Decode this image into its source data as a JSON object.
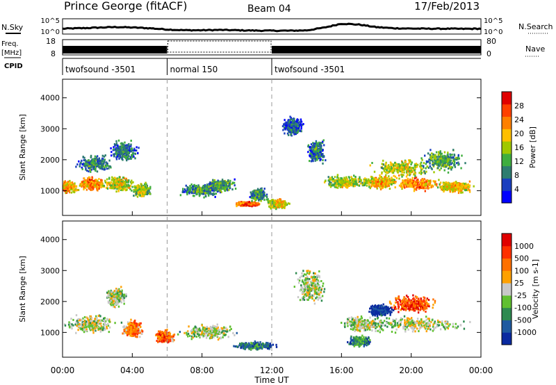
{
  "header": {
    "station": "Prince George (fitACF)",
    "beam": "Beam 04",
    "date": "17/Feb/2013"
  },
  "left_labels": {
    "nsky": "N.Sky",
    "freq": "Freq.",
    "freq_unit": "[MHz]",
    "cpid": "CPID"
  },
  "right_labels": {
    "nsearch": "N.Search",
    "nave": "Nave"
  },
  "chart_data": [
    {
      "type": "line",
      "name": "noise",
      "ylim_ticks": [
        "10^5",
        "10^0"
      ],
      "right_ticks": [
        "10^5",
        "10^0"
      ],
      "series": [
        {
          "x": [
            0,
            1,
            2,
            3,
            4,
            5,
            6,
            7,
            8,
            9,
            10,
            11,
            12,
            13,
            14,
            15,
            16,
            17,
            18,
            19,
            20,
            21,
            22,
            23,
            24
          ],
          "values": [
            0.35,
            0.38,
            0.42,
            0.46,
            0.43,
            0.38,
            0.3,
            0.25,
            0.25,
            0.27,
            0.25,
            0.23,
            0.22,
            0.22,
            0.24,
            0.42,
            0.68,
            0.62,
            0.45,
            0.38,
            0.36,
            0.35,
            0.35,
            0.34,
            0.35
          ]
        }
      ]
    },
    {
      "type": "bar",
      "name": "frequency",
      "left_ticks": [
        "18",
        "8"
      ],
      "right_ticks": [
        "80",
        "0"
      ],
      "segments": [
        {
          "start": 0,
          "end": 6,
          "style": "filled"
        },
        {
          "start": 6,
          "end": 12,
          "style": "dotted"
        },
        {
          "start": 12,
          "end": 24,
          "style": "filled"
        }
      ]
    },
    {
      "type": "table",
      "name": "cpid",
      "segments": [
        {
          "start": 0,
          "end": 6,
          "label": "twofsound -3501"
        },
        {
          "start": 6,
          "end": 12,
          "label": "normal 150"
        },
        {
          "start": 12,
          "end": 24,
          "label": "twofsound -3501"
        }
      ]
    },
    {
      "type": "heatmap",
      "name": "power",
      "ylabel": "Slant Range [km]",
      "yticks": [
        1000,
        2000,
        3000,
        4000
      ],
      "ylim": [
        200,
        4600
      ],
      "colorbar_label": "Power [dB]",
      "colorbar_ticks": [
        "28",
        "24",
        "20",
        "16",
        "12",
        "8",
        "4"
      ],
      "colors": [
        "#0000ff",
        "#1a3fbf",
        "#2e7d70",
        "#3fae3f",
        "#a0c800",
        "#ffbf00",
        "#ff8000",
        "#ff4000",
        "#e00000"
      ],
      "blobs": [
        {
          "t": 0.2,
          "r": 1150,
          "dt": 0.8,
          "dr": 220,
          "v": 0.7
        },
        {
          "t": 1.6,
          "r": 1250,
          "dt": 0.9,
          "dr": 250,
          "v": 0.75
        },
        {
          "t": 3.2,
          "r": 1250,
          "dt": 1.0,
          "dr": 300,
          "v": 0.6
        },
        {
          "t": 4.5,
          "r": 1050,
          "dt": 0.6,
          "dr": 250,
          "v": 0.55
        },
        {
          "t": 1.8,
          "r": 1900,
          "dt": 1.2,
          "dr": 300,
          "v": 0.35
        },
        {
          "t": 3.5,
          "r": 2300,
          "dt": 1.0,
          "dr": 400,
          "v": 0.3
        },
        {
          "t": 7.8,
          "r": 1050,
          "dt": 1.4,
          "dr": 250,
          "v": 0.35
        },
        {
          "t": 9.0,
          "r": 1200,
          "dt": 1.0,
          "dr": 250,
          "v": 0.4
        },
        {
          "t": 10.6,
          "r": 600,
          "dt": 0.9,
          "dr": 90,
          "v": 0.85
        },
        {
          "t": 12.3,
          "r": 600,
          "dt": 0.8,
          "dr": 180,
          "v": 0.6
        },
        {
          "t": 11.2,
          "r": 900,
          "dt": 0.6,
          "dr": 250,
          "v": 0.35
        },
        {
          "t": 13.2,
          "r": 3100,
          "dt": 0.8,
          "dr": 350,
          "v": 0.25
        },
        {
          "t": 14.5,
          "r": 2300,
          "dt": 0.6,
          "dr": 450,
          "v": 0.3
        },
        {
          "t": 16.2,
          "r": 1300,
          "dt": 1.6,
          "dr": 250,
          "v": 0.55
        },
        {
          "t": 18.2,
          "r": 1300,
          "dt": 1.2,
          "dr": 250,
          "v": 0.65
        },
        {
          "t": 20.3,
          "r": 1250,
          "dt": 1.6,
          "dr": 250,
          "v": 0.75
        },
        {
          "t": 22.5,
          "r": 1150,
          "dt": 1.3,
          "dr": 220,
          "v": 0.65
        },
        {
          "t": 19.5,
          "r": 1750,
          "dt": 2.2,
          "dr": 350,
          "v": 0.55
        },
        {
          "t": 21.8,
          "r": 2000,
          "dt": 1.4,
          "dr": 400,
          "v": 0.4
        }
      ]
    },
    {
      "type": "heatmap",
      "name": "velocity",
      "ylabel": "Slant Range [km]",
      "yticks": [
        1000,
        2000,
        3000,
        4000
      ],
      "ylim": [
        200,
        4600
      ],
      "xticks": [
        "00:00",
        "04:00",
        "08:00",
        "12:00",
        "16:00",
        "20:00",
        "00:00"
      ],
      "xlabel": "Time UT",
      "colorbar_label": "Velocity [m s-1]",
      "colorbar_ticks": [
        "1000",
        "500",
        "100",
        "25",
        "-25",
        "-100",
        "-500",
        "-1000"
      ],
      "colors": [
        "#0a2aa0",
        "#1e5aa0",
        "#2e8a50",
        "#60c030",
        "#c8c8c8",
        "#ffa000",
        "#ff7000",
        "#ff3000",
        "#e00000"
      ],
      "blobs": [
        {
          "t": 1.6,
          "r": 1300,
          "dt": 1.8,
          "dr": 350,
          "v": 0.5
        },
        {
          "t": 4.0,
          "r": 1150,
          "dt": 0.7,
          "dr": 350,
          "v": 0.75
        },
        {
          "t": 5.8,
          "r": 900,
          "dt": 0.6,
          "dr": 250,
          "v": 0.8
        },
        {
          "t": 8.3,
          "r": 1050,
          "dt": 2.0,
          "dr": 300,
          "v": 0.5
        },
        {
          "t": 11.0,
          "r": 600,
          "dt": 1.4,
          "dr": 160,
          "v": 0.25
        },
        {
          "t": 14.2,
          "r": 2500,
          "dt": 1.0,
          "dr": 700,
          "v": 0.5
        },
        {
          "t": 17.2,
          "r": 1300,
          "dt": 1.6,
          "dr": 300,
          "v": 0.5
        },
        {
          "t": 20.3,
          "r": 1300,
          "dt": 3.4,
          "dr": 300,
          "v": 0.5
        },
        {
          "t": 20.0,
          "r": 1950,
          "dt": 1.6,
          "dr": 350,
          "v": 0.85
        },
        {
          "t": 18.2,
          "r": 1750,
          "dt": 0.8,
          "dr": 250,
          "v": 0.1
        },
        {
          "t": 17.0,
          "r": 750,
          "dt": 0.8,
          "dr": 200,
          "v": 0.3
        },
        {
          "t": 3.0,
          "r": 2200,
          "dt": 0.7,
          "dr": 400,
          "v": 0.5
        }
      ]
    }
  ]
}
